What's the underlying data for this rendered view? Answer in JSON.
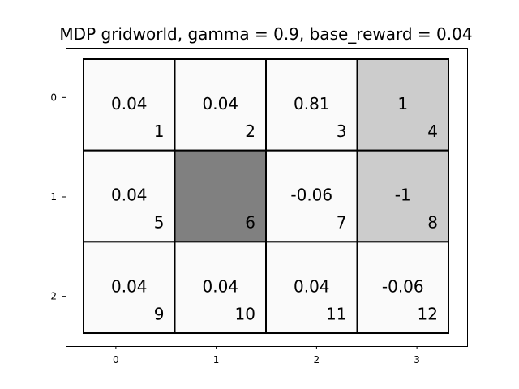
{
  "chart_data": {
    "type": "heatmap",
    "title": "MDP gridworld, gamma = 0.9, base_reward = 0.04",
    "xlabel": "",
    "ylabel": "",
    "x_ticks": [
      "0",
      "1",
      "2",
      "3"
    ],
    "y_ticks": [
      "0",
      "1",
      "2"
    ],
    "xlim": [
      -0.5,
      3.5
    ],
    "ylim": [
      2.5,
      -0.5
    ],
    "grid": false,
    "colors": {
      "normal": "#fafafa",
      "terminal": "#cccccc",
      "wall": "#808080",
      "border": "#000000"
    },
    "cells": [
      {
        "row": 0,
        "col": 0,
        "value": "0.04",
        "index": "1",
        "kind": "normal"
      },
      {
        "row": 0,
        "col": 1,
        "value": "0.04",
        "index": "2",
        "kind": "normal"
      },
      {
        "row": 0,
        "col": 2,
        "value": "0.81",
        "index": "3",
        "kind": "normal"
      },
      {
        "row": 0,
        "col": 3,
        "value": "1",
        "index": "4",
        "kind": "terminal"
      },
      {
        "row": 1,
        "col": 0,
        "value": "0.04",
        "index": "5",
        "kind": "normal"
      },
      {
        "row": 1,
        "col": 1,
        "value": "",
        "index": "6",
        "kind": "wall"
      },
      {
        "row": 1,
        "col": 2,
        "value": "-0.06",
        "index": "7",
        "kind": "normal"
      },
      {
        "row": 1,
        "col": 3,
        "value": "-1",
        "index": "8",
        "kind": "terminal"
      },
      {
        "row": 2,
        "col": 0,
        "value": "0.04",
        "index": "9",
        "kind": "normal"
      },
      {
        "row": 2,
        "col": 1,
        "value": "0.04",
        "index": "10",
        "kind": "normal"
      },
      {
        "row": 2,
        "col": 2,
        "value": "0.04",
        "index": "11",
        "kind": "normal"
      },
      {
        "row": 2,
        "col": 3,
        "value": "-0.06",
        "index": "12",
        "kind": "normal"
      }
    ]
  }
}
